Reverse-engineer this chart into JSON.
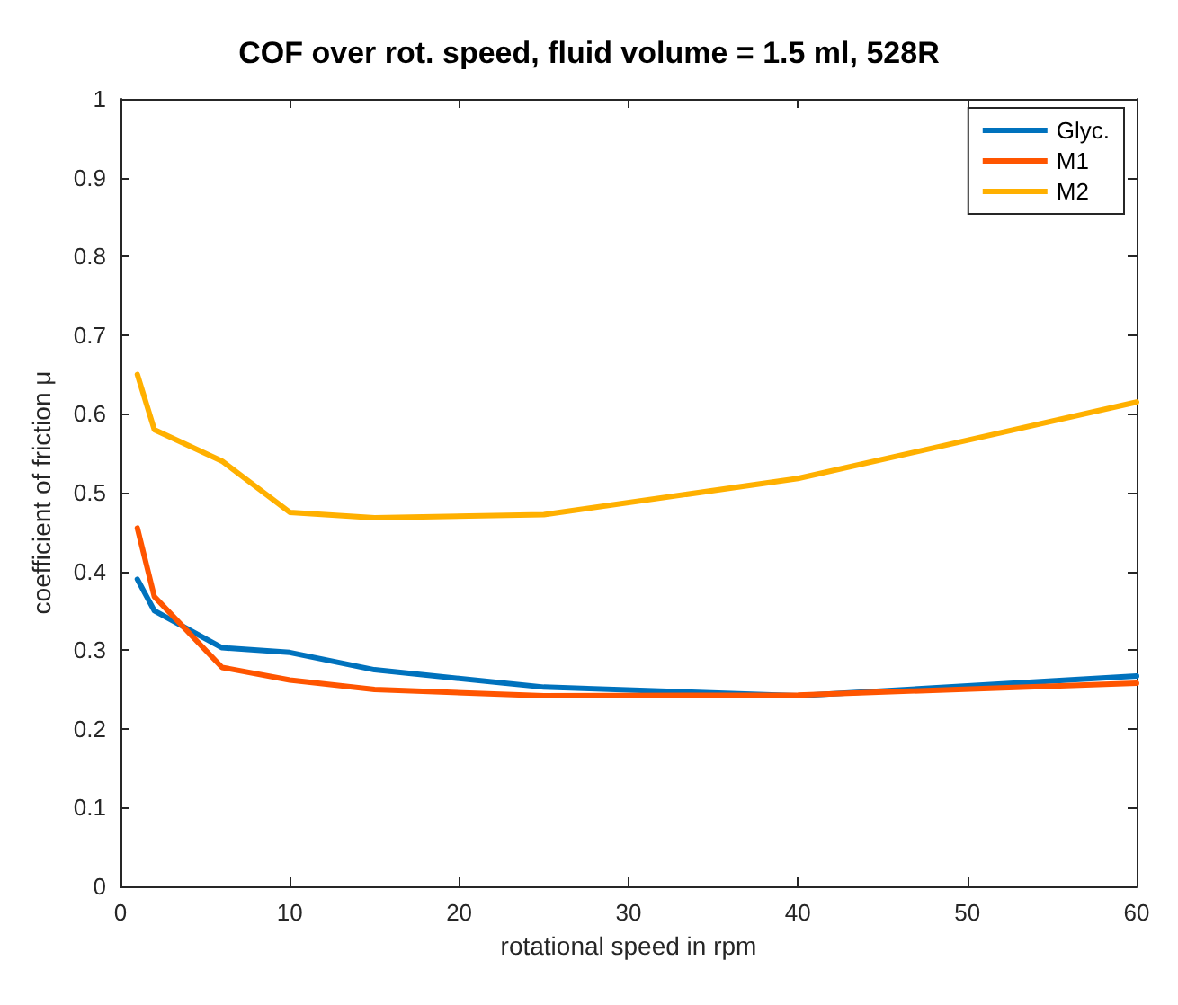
{
  "chart_data": {
    "type": "line",
    "title": "COF over rot. speed, fluid volume = 1.5 ml, 528R",
    "xlabel": "rotational speed in rpm",
    "ylabel": "coefficient of friction μ",
    "x": [
      1,
      2,
      6,
      10,
      15,
      25,
      40,
      60
    ],
    "series": [
      {
        "name": "Glyc.",
        "color": "#0072bd",
        "values": [
          0.39,
          0.35,
          0.303,
          0.297,
          0.275,
          0.253,
          0.242,
          0.267
        ]
      },
      {
        "name": "M1",
        "color": "#ff5500",
        "values": [
          0.455,
          0.368,
          0.278,
          0.262,
          0.25,
          0.242,
          0.243,
          0.258
        ]
      },
      {
        "name": "M2",
        "color": "#ffb000",
        "values": [
          0.65,
          0.58,
          0.54,
          0.475,
          0.468,
          0.472,
          0.518,
          0.615
        ]
      }
    ],
    "xlim": [
      0,
      60
    ],
    "xticks": [
      0,
      10,
      20,
      30,
      40,
      50,
      60
    ],
    "ylim": [
      0,
      1
    ],
    "yticks": [
      0,
      0.1,
      0.2,
      0.3,
      0.4,
      0.5,
      0.6,
      0.7,
      0.8,
      0.9,
      1
    ],
    "grid": false,
    "legend": "top right",
    "marker": "none",
    "line_style": "solid"
  }
}
